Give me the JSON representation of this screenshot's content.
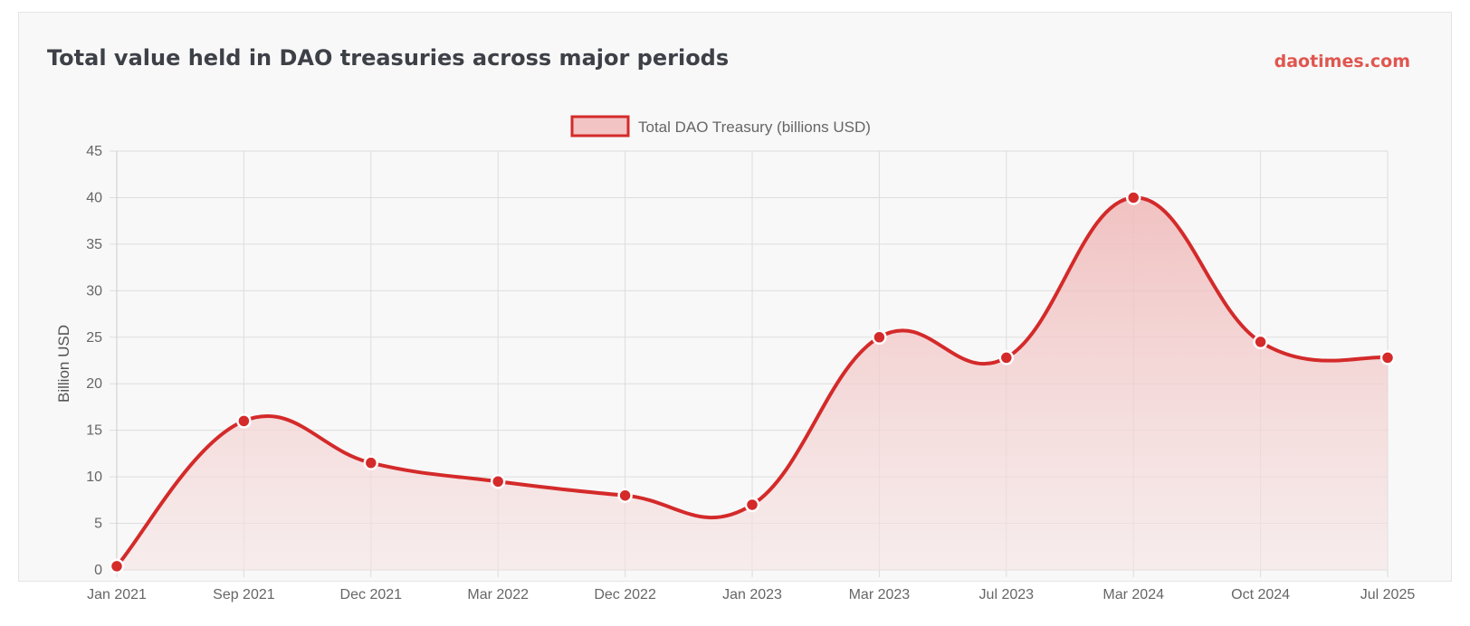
{
  "header": {
    "title": "Total value held in DAO treasuries across major periods",
    "brand": "daotimes.com"
  },
  "colors": {
    "line": "#d42a2a",
    "fill_top": "#f0b8b8",
    "fill_bottom": "#f6e4e4",
    "grid": "#dddddd",
    "card": "#f8f8f8"
  },
  "chart_data": {
    "type": "area",
    "title": "Total value held in DAO treasuries across major periods",
    "xlabel": "",
    "ylabel": "Billion USD",
    "ylim": [
      0,
      45
    ],
    "yticks": [
      0,
      5,
      10,
      15,
      20,
      25,
      30,
      35,
      40,
      45
    ],
    "grid": true,
    "legend_position": "top-center",
    "categories": [
      "Jan 2021",
      "Sep 2021",
      "Dec 2021",
      "Mar 2022",
      "Dec 2022",
      "Jan 2023",
      "Mar 2023",
      "Jul 2023",
      "Mar 2024",
      "Oct 2024",
      "Jul 2025"
    ],
    "series": [
      {
        "name": "Total DAO Treasury (billions USD)",
        "values": [
          0.4,
          16,
          11.5,
          9.5,
          8,
          7,
          25,
          22.8,
          40,
          24.5,
          22.8
        ]
      }
    ]
  }
}
